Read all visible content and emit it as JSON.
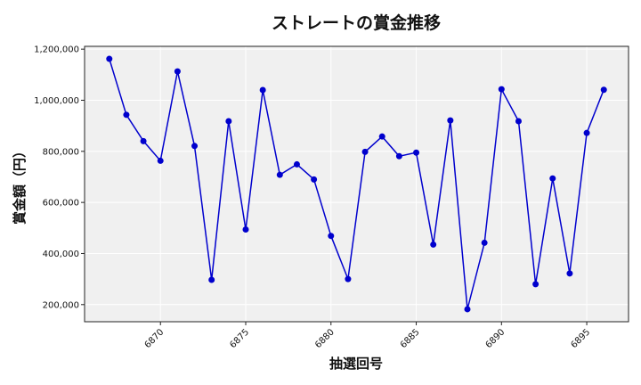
{
  "chart_data": {
    "type": "line",
    "title": "ストレートの賞金推移",
    "xlabel": "抽選回号",
    "ylabel": "賞金額（円）",
    "x": [
      6867,
      6868,
      6869,
      6870,
      6871,
      6872,
      6873,
      6874,
      6875,
      6876,
      6877,
      6878,
      6879,
      6880,
      6881,
      6882,
      6883,
      6884,
      6885,
      6886,
      6887,
      6888,
      6889,
      6890,
      6891,
      6892,
      6893,
      6894,
      6895,
      6896
    ],
    "y": [
      1162000,
      943000,
      840000,
      763000,
      1113000,
      821000,
      297000,
      918000,
      494000,
      1040000,
      708000,
      749000,
      690000,
      469000,
      300000,
      798000,
      858000,
      781000,
      795000,
      435000,
      921000,
      182000,
      442000,
      1043000,
      918000,
      280000,
      694000,
      322000,
      872000,
      1041000
    ],
    "xticks": [
      6870,
      6875,
      6880,
      6885,
      6890,
      6895
    ],
    "xtick_labels": [
      "6870",
      "6875",
      "6880",
      "6885",
      "6890",
      "6895"
    ],
    "yticks": [
      200000,
      400000,
      600000,
      800000,
      1000000,
      1200000
    ],
    "ytick_labels": [
      "200,000",
      "400,000",
      "600,000",
      "800,000",
      "1,000,000",
      "1,200,000"
    ],
    "xlim": [
      6865.55,
      6897.45
    ],
    "ylim": [
      133000,
      1211000
    ],
    "grid": true,
    "line_color": "#0000cd",
    "marker_color": "#0000cd",
    "plot_background": "#f0f0f0"
  }
}
